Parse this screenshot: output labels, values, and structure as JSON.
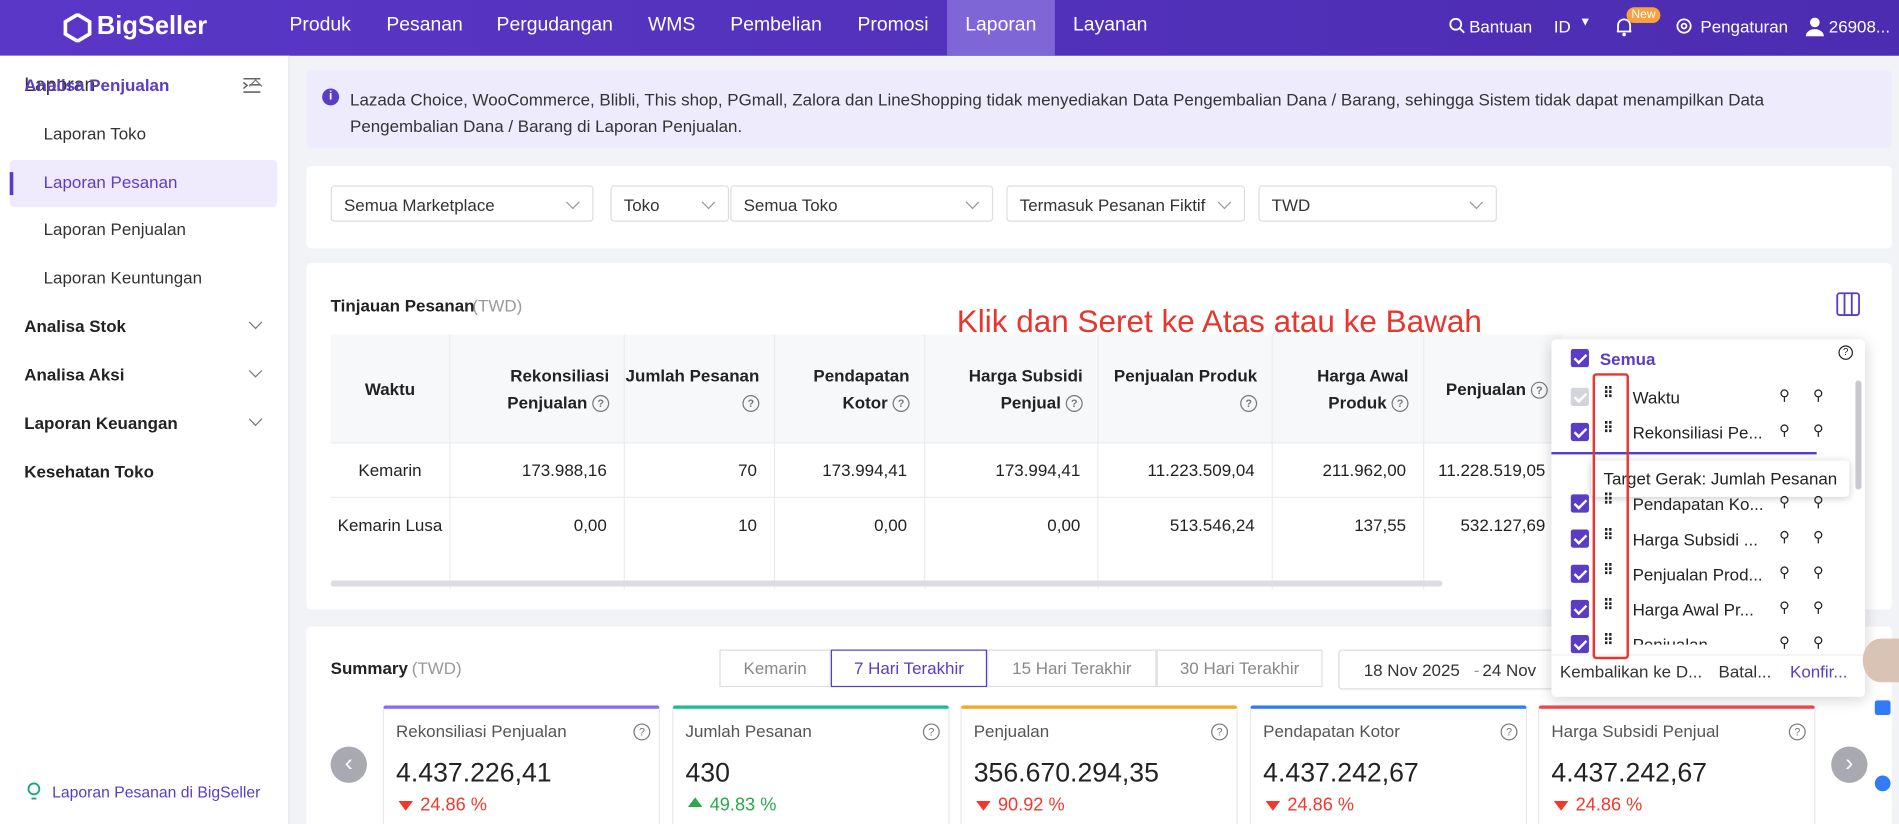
{
  "nav": {
    "logo": "BigSeller",
    "menu": [
      "Produk",
      "Pesanan",
      "Pergudangan",
      "WMS",
      "Pembelian",
      "Promosi",
      "Laporan",
      "Layanan"
    ],
    "active": 6,
    "help": "Bantuan",
    "lang": "ID",
    "badge": "New",
    "settings": "Pengaturan",
    "user": "26908..."
  },
  "sidebar": {
    "title": "Laporan",
    "groups": [
      {
        "label": "Analisa Penjualan",
        "items": [
          "Laporan Toko",
          "Laporan Pesanan",
          "Laporan Penjualan",
          "Laporan Keuntungan"
        ]
      },
      {
        "label": "Analisa Stok"
      },
      {
        "label": "Analisa Aksi"
      },
      {
        "label": "Laporan Keuangan"
      },
      {
        "label": "Kesehatan Toko"
      }
    ],
    "active_item": 1,
    "footer": "Laporan Pesanan di BigSeller"
  },
  "notice": "Lazada Choice, WooCommerce, Blibli, This shop, PGmall, Zalora dan LineShopping tidak menyediakan Data Pengembalian Dana / Barang, sehingga Sistem tidak dapat menampilkan Data Pengembalian Dana / Barang di Laporan Penjualan.",
  "filters": [
    "Semua Marketplace",
    "Toko",
    "Semua Toko",
    "Termasuk Pesanan Fiktif",
    "TWD"
  ],
  "overview": {
    "title": "Tinjauan Pesanan",
    "unit": "(TWD)",
    "annotation": "Klik dan Seret ke Atas atau ke Bawah",
    "table": {
      "headers": [
        "Waktu",
        "Rekonsiliasi Penjualan",
        "Jumlah Pesanan",
        "Pendapatan Kotor",
        "Harga Subsidi Penjual",
        "Penjualan Produk",
        "Harga Awal Produk",
        "Penjualan"
      ],
      "rows": [
        [
          "Kemarin",
          "173.988,16",
          "70",
          "173.994,41",
          "173.994,41",
          "11.223.509,04",
          "211.962,00",
          "11.228.519,05"
        ],
        [
          "Kemarin Lusa",
          "0,00",
          "10",
          "0,00",
          "0,00",
          "513.546,24",
          "137,55",
          "532.127,69"
        ]
      ]
    }
  },
  "column_panel": {
    "all": "Semua",
    "items": [
      "Waktu",
      "Rekonsiliasi Pe...",
      "Pendapatan Ko...",
      "Harga Subsidi ...",
      "Penjualan Prod...",
      "Harga Awal Pr...",
      "Penjualan"
    ],
    "tooltip": "Target Gerak: Jumlah Pesanan",
    "buttons": [
      "Kembalikan ke D...",
      "Batal...",
      "Konfir..."
    ]
  },
  "summary": {
    "title": "Summary",
    "unit": "(TWD)",
    "tabs": [
      "Kemarin",
      "7 Hari Terakhir",
      "15 Hari Terakhir",
      "30 Hari Terakhir"
    ],
    "active_tab": 1,
    "date_from": "18 Nov 2025",
    "date_sep": "-",
    "date_to": "24 Nov",
    "cards": [
      {
        "label": "Rekonsiliasi Penjualan",
        "value": "4.437.226,41",
        "change": "24.86 %",
        "direction": "down",
        "color": "#8a6cf0"
      },
      {
        "label": "Jumlah Pesanan",
        "value": "430",
        "change": "49.83 %",
        "direction": "up",
        "color": "#1fb99a"
      },
      {
        "label": "Penjualan",
        "value": "356.670.294,35",
        "change": "90.92 %",
        "direction": "down",
        "color": "#f5a623"
      },
      {
        "label": "Pendapatan Kotor",
        "value": "4.437.242,67",
        "change": "24.86 %",
        "direction": "down",
        "color": "#2f7cf6"
      },
      {
        "label": "Harga Subsidi Penjual",
        "value": "4.437.242,67",
        "change": "24.86 %",
        "direction": "down",
        "color": "#f0474a"
      }
    ]
  }
}
